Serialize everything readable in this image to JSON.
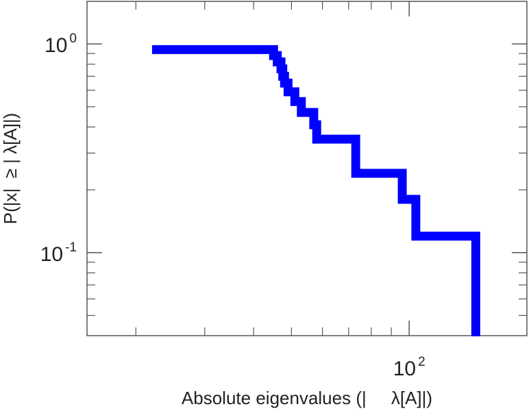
{
  "chart_data": {
    "type": "line",
    "step": true,
    "xlabel": "Absolute eigenvalues (|     λ[A]|)",
    "ylabel": "P(|x|  ≥ | λ[A]|)",
    "x_scale": "log",
    "y_scale": "log",
    "xlim": [
      15,
      200
    ],
    "ylim": [
      0.04,
      1.6
    ],
    "x_ticks": [
      {
        "base": "10",
        "exp": "2",
        "value": 100
      }
    ],
    "y_ticks": [
      {
        "base": "10",
        "exp": "0",
        "value": 1
      },
      {
        "base": "10",
        "exp": "-1",
        "value": 0.1
      }
    ],
    "grid": false,
    "series": [
      {
        "color": "#0000ff",
        "x": [
          22,
          45,
          46,
          47,
          47.5,
          48,
          49,
          51,
          53,
          57,
          58,
          73,
          96,
          104,
          148
        ],
        "y": [
          0.94,
          0.88,
          0.82,
          0.76,
          0.7,
          0.65,
          0.59,
          0.53,
          0.47,
          0.41,
          0.35,
          0.24,
          0.18,
          0.12,
          0.06
        ]
      }
    ]
  }
}
